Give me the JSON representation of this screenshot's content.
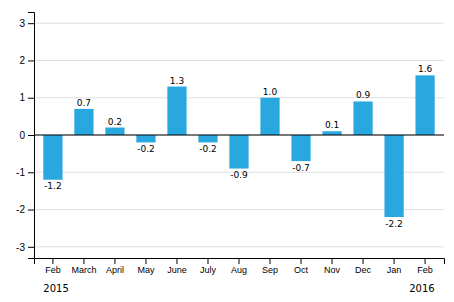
{
  "chart_data": {
    "type": "bar",
    "categories": [
      "Feb",
      "March",
      "April",
      "May",
      "June",
      "July",
      "Aug",
      "Sep",
      "Oct",
      "Nov",
      "Dec",
      "Jan",
      "Feb"
    ],
    "values": [
      -1.2,
      0.7,
      0.2,
      -0.2,
      1.3,
      -0.2,
      -0.9,
      1.0,
      -0.7,
      0.1,
      0.9,
      -2.2,
      1.6
    ],
    "value_labels": [
      "-1.2",
      "0.7",
      "0.2",
      "-0.2",
      "1.3",
      "-0.2",
      "-0.9",
      "1.0",
      "-0.7",
      "0.1",
      "0.9",
      "-2.2",
      "1.6"
    ],
    "color": "#29a8e0",
    "ylim": [
      -3.3,
      3.3
    ],
    "yticks": [
      -3,
      -2,
      -1,
      0,
      1,
      2,
      3
    ],
    "grid": true,
    "data_labels": true,
    "annotations": [
      "2015",
      "2016"
    ]
  }
}
